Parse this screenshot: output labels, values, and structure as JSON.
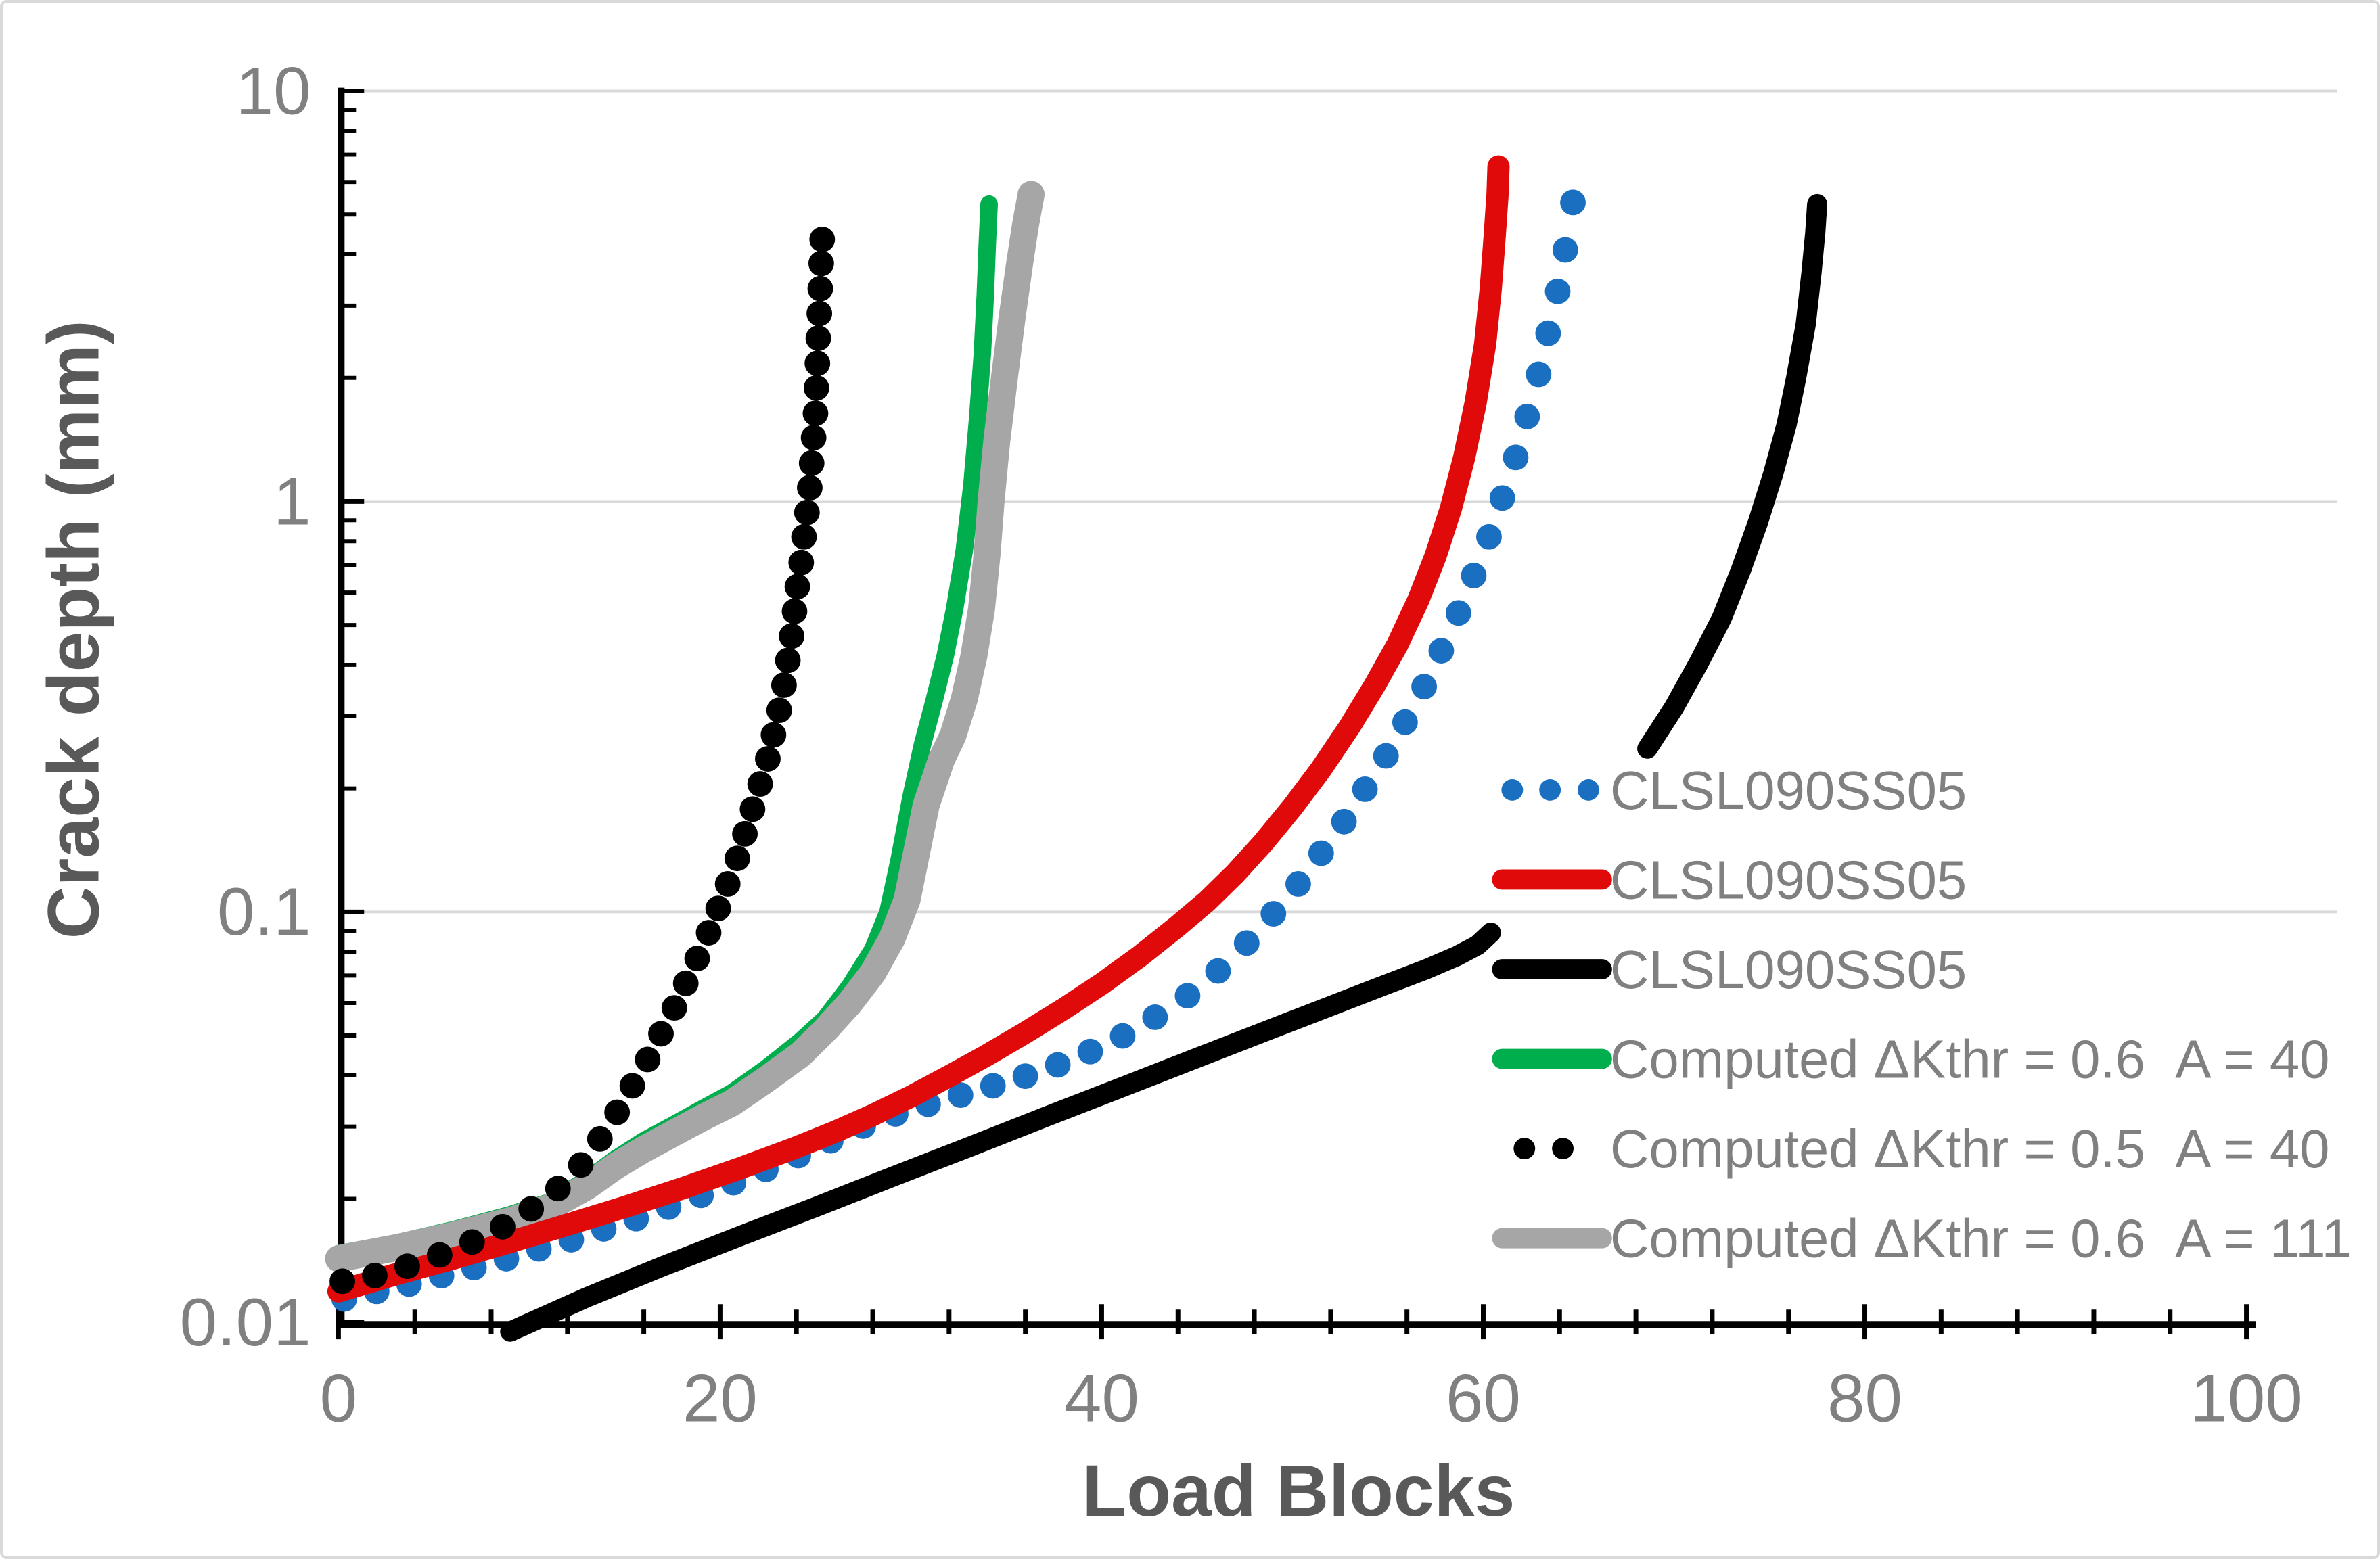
{
  "figure": {
    "kind": "log-scale line chart",
    "background": "#ffffff",
    "border_color": "#d9d9d9"
  },
  "axes": {
    "x": {
      "title": "Load Blocks",
      "min": 0,
      "max": 100,
      "major_unit": 20,
      "minor_unit": 4,
      "tick_labels": [
        "0",
        "20",
        "40",
        "60",
        "80",
        "100"
      ],
      "tick_values": [
        0,
        20,
        40,
        60,
        80,
        100
      ]
    },
    "y": {
      "title": "Crack depth (mm)",
      "scale": "log",
      "min": 0.01,
      "max": 10,
      "tick_labels": [
        "0.01",
        "0.1",
        "1",
        "10"
      ],
      "tick_values": [
        0.01,
        0.1,
        1,
        10
      ],
      "gridline_values": [
        0.1,
        1,
        10
      ]
    }
  },
  "style": {
    "tick_label_color": "#808080",
    "axis_title_color": "#595959",
    "legend_text_color": "#808080",
    "gridline_color": "#d9d9d9",
    "axis_line_color": "#000000"
  },
  "chart_data": {
    "type": "line",
    "title": "",
    "xlabel": "Load Blocks",
    "ylabel": "Crack depth (mm)",
    "xlim": [
      0,
      100
    ],
    "ylim": [
      0.01,
      10
    ],
    "y_log": true,
    "grid": "horizontal-decades",
    "legend_position": "inside-right",
    "series": [
      {
        "name": "CLSL090SS05",
        "color": "#1b6fc1",
        "style": "dots",
        "marker_radius": 19,
        "points": [
          [
            0.3,
            0.0114
          ],
          [
            2.0,
            0.0119
          ],
          [
            3.7,
            0.0124
          ],
          [
            5.4,
            0.013
          ],
          [
            7.1,
            0.0136
          ],
          [
            8.8,
            0.0143
          ],
          [
            10.5,
            0.0151
          ],
          [
            12.2,
            0.0159
          ],
          [
            13.9,
            0.0169
          ],
          [
            15.6,
            0.0179
          ],
          [
            17.3,
            0.0191
          ],
          [
            19.0,
            0.0204
          ],
          [
            20.7,
            0.0219
          ],
          [
            22.4,
            0.0236
          ],
          [
            24.1,
            0.0255
          ],
          [
            25.8,
            0.0277
          ],
          [
            27.5,
            0.0301
          ],
          [
            29.2,
            0.0322
          ],
          [
            30.9,
            0.034
          ],
          [
            32.6,
            0.0358
          ],
          [
            34.3,
            0.0377
          ],
          [
            36.0,
            0.0398
          ],
          [
            37.7,
            0.0424
          ],
          [
            39.4,
            0.0457
          ],
          [
            41.1,
            0.0499
          ],
          [
            42.8,
            0.0554
          ],
          [
            44.5,
            0.0625
          ],
          [
            46.1,
            0.0718
          ],
          [
            47.6,
            0.084
          ],
          [
            49.0,
            0.099
          ],
          [
            50.3,
            0.117
          ],
          [
            51.5,
            0.139
          ],
          [
            52.7,
            0.166
          ],
          [
            53.8,
            0.199
          ],
          [
            54.9,
            0.24
          ],
          [
            55.9,
            0.29
          ],
          [
            56.9,
            0.354
          ],
          [
            57.8,
            0.433
          ],
          [
            58.7,
            0.535
          ],
          [
            59.5,
            0.66
          ],
          [
            60.3,
            0.82
          ],
          [
            61.0,
            1.02
          ],
          [
            61.7,
            1.28
          ],
          [
            62.3,
            1.61
          ],
          [
            62.9,
            2.04
          ],
          [
            63.4,
            2.57
          ],
          [
            63.9,
            3.25
          ],
          [
            64.3,
            4.1
          ],
          [
            64.7,
            5.35
          ]
        ]
      },
      {
        "name": "CLSL090SS05",
        "color": "#e00a0a",
        "style": "line",
        "line_width": 33,
        "points": [
          [
            0,
            0.0119
          ],
          [
            3,
            0.0131
          ],
          [
            6,
            0.0143
          ],
          [
            9,
            0.0157
          ],
          [
            12,
            0.0173
          ],
          [
            15,
            0.0191
          ],
          [
            18,
            0.0212
          ],
          [
            21,
            0.0237
          ],
          [
            24,
            0.0267
          ],
          [
            26,
            0.0291
          ],
          [
            28,
            0.032
          ],
          [
            30,
            0.0355
          ],
          [
            32,
            0.0398
          ],
          [
            34,
            0.0448
          ],
          [
            36,
            0.0508
          ],
          [
            38,
            0.058
          ],
          [
            40,
            0.0668
          ],
          [
            42,
            0.078
          ],
          [
            44,
            0.0925
          ],
          [
            45.5,
            0.106
          ],
          [
            47,
            0.124
          ],
          [
            48.5,
            0.148
          ],
          [
            50,
            0.18
          ],
          [
            51.5,
            0.223
          ],
          [
            53,
            0.283
          ],
          [
            54.3,
            0.356
          ],
          [
            55.5,
            0.448
          ],
          [
            56.6,
            0.576
          ],
          [
            57.5,
            0.737
          ],
          [
            58.3,
            0.96
          ],
          [
            59.0,
            1.28
          ],
          [
            59.6,
            1.74
          ],
          [
            60.1,
            2.42
          ],
          [
            60.4,
            3.32
          ],
          [
            60.6,
            4.44
          ],
          [
            60.75,
            5.6
          ],
          [
            60.8,
            6.55
          ]
        ]
      },
      {
        "name": "CLSL090SS05",
        "color": "#000000",
        "style": "line",
        "line_width": 30,
        "segments": [
          [
            [
              9,
              0.0095
            ],
            [
              13,
              0.0115
            ],
            [
              17,
              0.0137
            ],
            [
              21,
              0.0162
            ],
            [
              25,
              0.0191
            ],
            [
              29,
              0.0226
            ],
            [
              33,
              0.0267
            ],
            [
              37,
              0.0316
            ],
            [
              41,
              0.0373
            ],
            [
              45,
              0.0441
            ],
            [
              49,
              0.0521
            ],
            [
              52,
              0.059
            ],
            [
              55,
              0.0668
            ],
            [
              57,
              0.0725
            ],
            [
              58.6,
              0.078
            ],
            [
              59.7,
              0.083
            ],
            [
              60.4,
              0.089
            ]
          ],
          [
            [
              68.6,
              0.25
            ],
            [
              70.0,
              0.315
            ],
            [
              71.3,
              0.405
            ],
            [
              72.5,
              0.52
            ],
            [
              73.5,
              0.68
            ],
            [
              74.4,
              0.89
            ],
            [
              75.2,
              1.17
            ],
            [
              75.9,
              1.54
            ],
            [
              76.4,
              2.0
            ],
            [
              76.9,
              2.7
            ],
            [
              77.2,
              3.6
            ],
            [
              77.4,
              4.5
            ],
            [
              77.5,
              5.3
            ]
          ]
        ]
      },
      {
        "name": "Computed ΔKthr = 0.6  A = 40",
        "color": "#00ae4d",
        "style": "line",
        "line_width": 26,
        "points": [
          [
            0,
            0.0147
          ],
          [
            3,
            0.0156
          ],
          [
            6,
            0.0168
          ],
          [
            9,
            0.0183
          ],
          [
            11,
            0.0196
          ],
          [
            13,
            0.0222
          ],
          [
            14.5,
            0.025
          ],
          [
            16,
            0.0277
          ],
          [
            17.5,
            0.0302
          ],
          [
            19,
            0.033
          ],
          [
            20.6,
            0.0362
          ],
          [
            22.4,
            0.0415
          ],
          [
            24.2,
            0.0484
          ],
          [
            25.5,
            0.055
          ],
          [
            26.8,
            0.066
          ],
          [
            28,
            0.081
          ],
          [
            28.8,
            0.1
          ],
          [
            29.4,
            0.135
          ],
          [
            30.0,
            0.19
          ],
          [
            30.6,
            0.255
          ],
          [
            31.2,
            0.325
          ],
          [
            31.8,
            0.42
          ],
          [
            32.3,
            0.55
          ],
          [
            32.8,
            0.76
          ],
          [
            33.2,
            1.1
          ],
          [
            33.5,
            1.6
          ],
          [
            33.75,
            2.3
          ],
          [
            33.9,
            3.2
          ],
          [
            34.0,
            4.2
          ],
          [
            34.1,
            5.3
          ]
        ]
      },
      {
        "name": "Computed ΔKthr = 0.5  A = 40",
        "color": "#000000",
        "style": "dots",
        "marker_radius": 19,
        "points": [
          [
            0.2,
            0.0126
          ],
          [
            1.9,
            0.013
          ],
          [
            3.6,
            0.0137
          ],
          [
            5.3,
            0.0146
          ],
          [
            7.0,
            0.0157
          ],
          [
            8.6,
            0.0171
          ],
          [
            10.1,
            0.0189
          ],
          [
            11.5,
            0.0212
          ],
          [
            12.7,
            0.0242
          ],
          [
            13.7,
            0.028
          ],
          [
            14.6,
            0.0325
          ],
          [
            15.4,
            0.0377
          ],
          [
            16.2,
            0.0437
          ],
          [
            16.9,
            0.0505
          ],
          [
            17.6,
            0.0584
          ],
          [
            18.2,
            0.067
          ],
          [
            18.8,
            0.077
          ],
          [
            19.4,
            0.089
          ],
          [
            19.9,
            0.102
          ],
          [
            20.4,
            0.117
          ],
          [
            20.9,
            0.135
          ],
          [
            21.3,
            0.155
          ],
          [
            21.7,
            0.178
          ],
          [
            22.1,
            0.205
          ],
          [
            22.5,
            0.236
          ],
          [
            22.8,
            0.27
          ],
          [
            23.1,
            0.31
          ],
          [
            23.35,
            0.357
          ],
          [
            23.55,
            0.41
          ],
          [
            23.75,
            0.47
          ],
          [
            23.9,
            0.54
          ],
          [
            24.05,
            0.62
          ],
          [
            24.25,
            0.71
          ],
          [
            24.4,
            0.82
          ],
          [
            24.55,
            0.94
          ],
          [
            24.7,
            1.08
          ],
          [
            24.8,
            1.24
          ],
          [
            24.9,
            1.43
          ],
          [
            25.0,
            1.64
          ],
          [
            25.05,
            1.89
          ],
          [
            25.1,
            2.17
          ],
          [
            25.15,
            2.5
          ],
          [
            25.2,
            2.87
          ],
          [
            25.25,
            3.3
          ],
          [
            25.3,
            3.8
          ],
          [
            25.35,
            4.35
          ]
        ]
      },
      {
        "name": "Computed ΔKthr = 0.6  A = 111",
        "color": "#a6a6a6",
        "style": "line",
        "line_width": 40,
        "points": [
          [
            0,
            0.0143
          ],
          [
            3,
            0.0152
          ],
          [
            6,
            0.0163
          ],
          [
            9,
            0.0177
          ],
          [
            11,
            0.019
          ],
          [
            13,
            0.0214
          ],
          [
            14.5,
            0.024
          ],
          [
            16,
            0.0264
          ],
          [
            17.5,
            0.0288
          ],
          [
            19,
            0.0314
          ],
          [
            20.6,
            0.0342
          ],
          [
            22.4,
            0.039
          ],
          [
            24.2,
            0.0449
          ],
          [
            25.5,
            0.0515
          ],
          [
            26.8,
            0.06
          ],
          [
            28,
            0.071
          ],
          [
            29,
            0.086
          ],
          [
            29.8,
            0.107
          ],
          [
            30.8,
            0.182
          ],
          [
            31.6,
            0.235
          ],
          [
            32.2,
            0.269
          ],
          [
            32.8,
            0.33
          ],
          [
            33.3,
            0.42
          ],
          [
            33.7,
            0.546
          ],
          [
            34.0,
            0.75
          ],
          [
            34.2,
            1.0
          ],
          [
            34.5,
            1.4
          ],
          [
            34.9,
            2.0
          ],
          [
            35.3,
            2.8
          ],
          [
            35.7,
            3.8
          ],
          [
            36.0,
            4.7
          ],
          [
            36.3,
            5.6
          ]
        ]
      }
    ],
    "legend": [
      {
        "label": "CLSL090SS05",
        "marker": "dots3",
        "color": "#1b6fc1"
      },
      {
        "label": "CLSL090SS05",
        "marker": "line",
        "color": "#e00a0a"
      },
      {
        "label": "CLSL090SS05",
        "marker": "line",
        "color": "#000000"
      },
      {
        "label": "Computed ΔKthr = 0.6  A = 40",
        "marker": "line",
        "color": "#00ae4d"
      },
      {
        "label": "Computed ΔKthr = 0.5  A = 40",
        "marker": "dots2",
        "color": "#000000"
      },
      {
        "label": "Computed ΔKthr = 0.6  A = 111",
        "marker": "line",
        "color": "#a6a6a6"
      }
    ]
  }
}
